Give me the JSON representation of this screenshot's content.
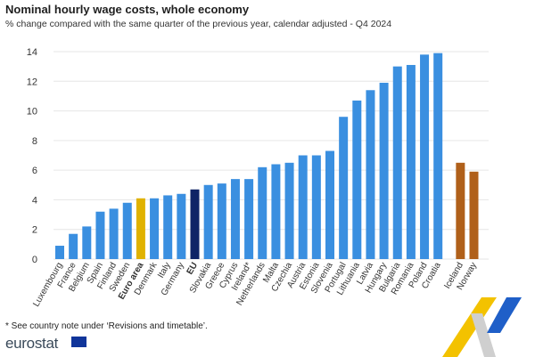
{
  "title": "Nominal hourly wage costs, whole economy",
  "subtitle": "% change compared with the same quarter of the previous year, calendar adjusted - Q4 2024",
  "footnote": "* See country note under ‘Revisions and timetable’.",
  "brand": "eurostat",
  "colors": {
    "default": "#3a8fe0",
    "euro_area": "#e0b200",
    "eu": "#0f2466",
    "efta": "#b0601a",
    "grid": "#e6e6e6",
    "axis_text": "#333333"
  },
  "chart_data": {
    "type": "bar",
    "title": "Nominal hourly wage costs, whole economy",
    "subtitle": "% change compared with the same quarter of the previous year, calendar adjusted - Q4 2024",
    "xlabel": "",
    "ylabel": "",
    "ylim": [
      0,
      14
    ],
    "yticks": [
      0,
      2,
      4,
      6,
      8,
      10,
      12,
      14
    ],
    "grid": true,
    "categories": [
      "Luxembourg",
      "France",
      "Belgium",
      "Spain",
      "Finland",
      "Sweden",
      "Euro area",
      "Denmark",
      "Italy",
      "Germany",
      "EU",
      "Slovakia",
      "Greece",
      "Cyprus",
      "Ireland*",
      "Netherlands",
      "Malta",
      "Czechia",
      "Austria",
      "Estonia",
      "Slovenia",
      "Portugal",
      "Lithuania",
      "Latvia",
      "Hungary",
      "Bulgaria",
      "Romania",
      "Poland",
      "Croatia",
      "Iceland",
      "Norway"
    ],
    "values": [
      0.9,
      1.7,
      2.2,
      3.2,
      3.4,
      3.8,
      4.1,
      4.1,
      4.3,
      4.4,
      4.7,
      5.0,
      5.1,
      5.4,
      5.4,
      6.2,
      6.4,
      6.5,
      7.0,
      7.0,
      7.3,
      9.6,
      10.7,
      11.4,
      11.9,
      13.0,
      13.1,
      13.8,
      13.9,
      6.5,
      5.9
    ],
    "groups": [
      "country",
      "country",
      "country",
      "country",
      "country",
      "country",
      "euro_area",
      "country",
      "country",
      "country",
      "eu",
      "country",
      "country",
      "country",
      "country",
      "country",
      "country",
      "country",
      "country",
      "country",
      "country",
      "country",
      "country",
      "country",
      "country",
      "country",
      "country",
      "country",
      "country",
      "efta",
      "efta"
    ],
    "bold_categories": [
      "Euro area",
      "EU"
    ]
  }
}
